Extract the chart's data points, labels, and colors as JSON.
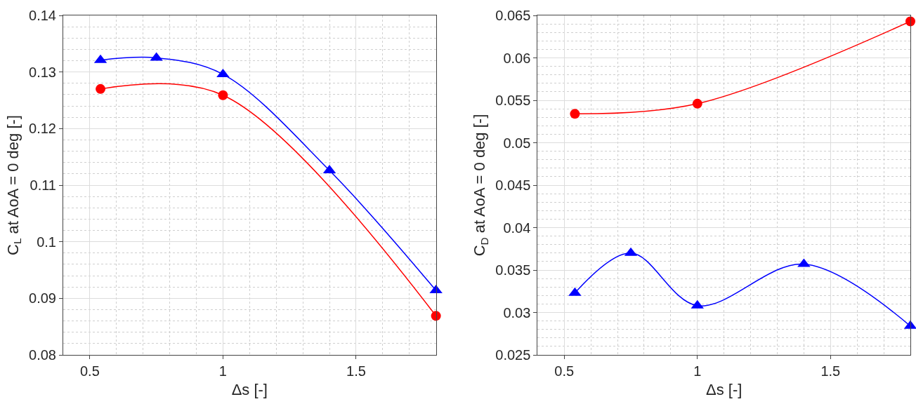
{
  "chart_data": [
    {
      "type": "line",
      "xlabel": "Δs [-]",
      "ylabel": "C$_{L}$ at AoA = 0 deg [-]",
      "xlim": [
        0.4,
        1.8
      ],
      "xticks": [
        0.5,
        1,
        1.5
      ],
      "ylim": [
        0.08,
        0.14
      ],
      "yticks": [
        0.08,
        0.09,
        0.1,
        0.11,
        0.12,
        0.13,
        0.14
      ],
      "grid": true,
      "series": [
        {
          "color": "#ff0000",
          "marker": "circle",
          "x": [
            0.54,
            1,
            1.8
          ],
          "values": [
            0.127,
            0.1259,
            0.0869
          ]
        },
        {
          "color": "#0000ff",
          "marker": "triangle",
          "x": [
            0.54,
            0.75,
            1,
            1.4,
            1.8
          ],
          "values": [
            0.1321,
            0.1325,
            0.1296,
            0.1126,
            0.0914
          ]
        }
      ]
    },
    {
      "type": "line",
      "xlabel": "Δs [-]",
      "ylabel": "C$_{D}$ at AoA = 0 deg [-]",
      "xlim": [
        0.4,
        1.8
      ],
      "xticks": [
        0.5,
        1,
        1.5
      ],
      "ylim": [
        0.025,
        0.065
      ],
      "yticks": [
        0.025,
        0.03,
        0.035,
        0.04,
        0.045,
        0.05,
        0.055,
        0.06,
        0.065
      ],
      "grid": true,
      "series": [
        {
          "color": "#ff0000",
          "marker": "circle",
          "x": [
            0.54,
            1,
            1.8
          ],
          "values": [
            0.0534,
            0.0546,
            0.0643
          ]
        },
        {
          "color": "#0000ff",
          "marker": "triangle",
          "x": [
            0.54,
            0.75,
            1,
            1.4,
            1.8
          ],
          "values": [
            0.0323,
            0.037,
            0.0308,
            0.0357,
            0.0284
          ]
        }
      ]
    }
  ]
}
